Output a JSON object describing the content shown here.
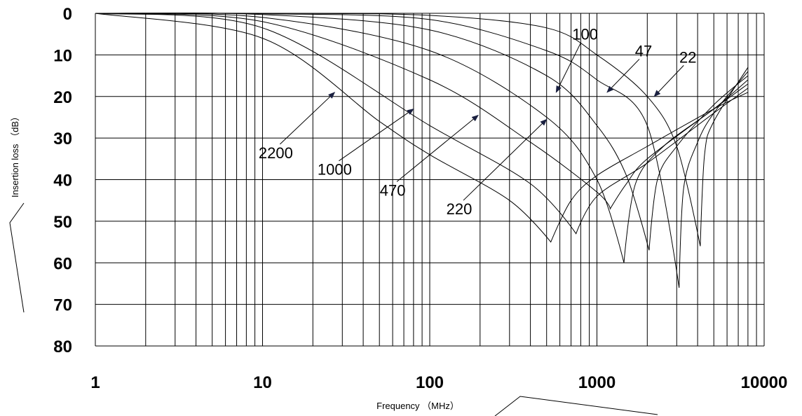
{
  "chart_data": {
    "type": "line",
    "x_scale": "log",
    "xlim": [
      1,
      10000
    ],
    "ylim": [
      0,
      80
    ],
    "y_inverted": true,
    "grid": true,
    "xlabel": "Frequency （MHz）",
    "ylabel": "Insertion loss （dB）",
    "x_ticks": [
      "1",
      "10",
      "100",
      "1000",
      "10000"
    ],
    "y_ticks": [
      "0",
      "10",
      "20",
      "30",
      "40",
      "50",
      "60",
      "70",
      "80"
    ],
    "series": [
      {
        "name": "2200",
        "x": [
          1,
          10,
          50,
          100,
          300,
          530,
          700,
          1000,
          2000,
          5000,
          8000
        ],
        "y": [
          0,
          6,
          26,
          34,
          45,
          55,
          45,
          39,
          32,
          23,
          19
        ]
      },
      {
        "name": "1000",
        "x": [
          1,
          10,
          100,
          400,
          750,
          1000,
          2000,
          5000,
          8000
        ],
        "y": [
          0,
          3.5,
          27,
          41,
          53,
          44,
          36,
          24,
          18
        ]
      },
      {
        "name": "470",
        "x": [
          1,
          10,
          100,
          400,
          1000,
          1200,
          1500,
          2000,
          5000,
          8000
        ],
        "y": [
          0,
          2,
          16,
          31,
          43,
          47,
          41,
          35,
          23,
          17
        ]
      },
      {
        "name": "220",
        "x": [
          1,
          10,
          100,
          500,
          1000,
          1450,
          1700,
          2500,
          5000,
          8000
        ],
        "y": [
          0,
          1,
          9,
          25,
          40,
          60,
          41,
          32,
          23,
          16
        ]
      },
      {
        "name": "100",
        "x": [
          1,
          10,
          100,
          500,
          1000,
          1500,
          2050,
          2300,
          3000,
          5000,
          8000
        ],
        "y": [
          0,
          0.3,
          4,
          15,
          27,
          39,
          57,
          40,
          32,
          22,
          15
        ]
      },
      {
        "name": "47",
        "x": [
          1,
          10,
          100,
          500,
          1000,
          2000,
          3100,
          3300,
          4000,
          5000,
          8000
        ],
        "y": [
          0,
          0.1,
          1.5,
          9,
          16,
          27,
          66,
          42,
          31,
          24,
          14
        ]
      },
      {
        "name": "22",
        "x": [
          1,
          10,
          100,
          500,
          1000,
          2000,
          3000,
          4150,
          4400,
          5000,
          8000
        ],
        "y": [
          0,
          0,
          0.5,
          3.5,
          10,
          20,
          32,
          56,
          34,
          26,
          13
        ]
      }
    ],
    "annotations": [
      {
        "text": "2200",
        "label_at": [
          12,
          33.5
        ],
        "arrow_to": [
          27,
          19
        ]
      },
      {
        "text": "1000",
        "label_at": [
          27,
          37.5
        ],
        "arrow_to": [
          80,
          23
        ]
      },
      {
        "text": "470",
        "label_at": [
          60,
          42.5
        ],
        "arrow_to": [
          195,
          24.5
        ]
      },
      {
        "text": "220",
        "label_at": [
          150,
          47
        ],
        "arrow_to": [
          500,
          25.5
        ]
      },
      {
        "text": "100",
        "label_at": [
          850,
          5
        ],
        "arrow_to": [
          570,
          19
        ]
      },
      {
        "text": "47",
        "label_at": [
          1900,
          9
        ],
        "arrow_to": [
          1150,
          19
        ]
      },
      {
        "text": "22",
        "label_at": [
          3500,
          10.5
        ],
        "arrow_to": [
          2200,
          20
        ]
      }
    ]
  },
  "colors": {
    "line": "#000000",
    "arrow_head": "#1a2040",
    "background": "#ffffff"
  }
}
